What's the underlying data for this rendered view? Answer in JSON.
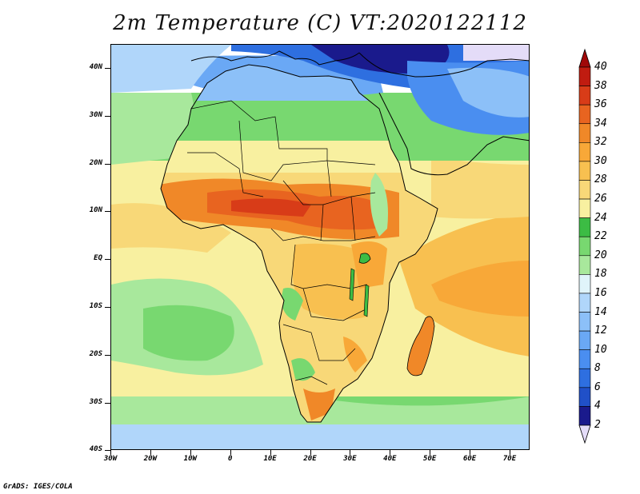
{
  "title": "2m Temperature (C) VT:2020122112",
  "credit": "GrADS: IGES/COLA",
  "lat_labels": [
    "40N",
    "30N",
    "20N",
    "10N",
    "EQ",
    "10S",
    "20S",
    "30S",
    "40S"
  ],
  "lon_labels": [
    "30W",
    "20W",
    "10W",
    "0",
    "10E",
    "20E",
    "30E",
    "40E",
    "50E",
    "60E",
    "70E"
  ],
  "colorbar": {
    "levels": [
      "2",
      "4",
      "6",
      "8",
      "10",
      "12",
      "14",
      "16",
      "18",
      "20",
      "22",
      "24",
      "26",
      "28",
      "30",
      "32",
      "34",
      "36",
      "38",
      "40"
    ],
    "colors": [
      "#1a1a8c",
      "#2050c8",
      "#2e6fe0",
      "#4a8ef0",
      "#6aa8f5",
      "#8cc0f8",
      "#b0d6fa",
      "#e0f4fa",
      "#a8e89c",
      "#78d870",
      "#3cbc44",
      "#f8f0a0",
      "#f8d878",
      "#f8c050",
      "#f8a838",
      "#f08828",
      "#e86420",
      "#d83c18",
      "#c01c10",
      "#a00808"
    ],
    "under_color": "#e4dcf8",
    "over_color": "#a00808"
  }
}
